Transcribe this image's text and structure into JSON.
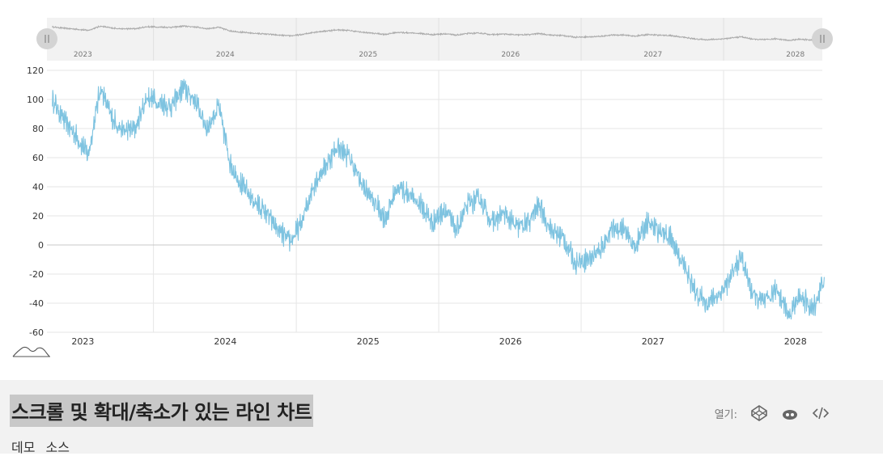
{
  "footer": {
    "title": "스크롤 및 확대/축소가 있는 라인 차트",
    "links": [
      "데모",
      "소스"
    ],
    "open_label": "열기:",
    "icons": [
      "codepen-icon",
      "glitch-icon",
      "code-icon"
    ]
  },
  "colors": {
    "series": "#7ec3e0",
    "navigator_series": "#aaaaaa",
    "grid": "#e6e6e6",
    "zero_line": "#c8c8c8",
    "footer_bg": "#f2f2f2",
    "title_highlight": "#c8c8c8"
  },
  "chart_data": {
    "type": "line",
    "title": "",
    "xlabel": "",
    "ylabel": "",
    "x_ticks": [
      "2023",
      "2024",
      "2025",
      "2026",
      "2027",
      "2028"
    ],
    "y_ticks": [
      120,
      100,
      80,
      60,
      40,
      20,
      0,
      -20,
      -40,
      -60
    ],
    "ylim": [
      -60,
      120
    ],
    "xlim": [
      "2022-10-01",
      "2028-03-10"
    ],
    "grid": true,
    "scrollbar": true,
    "navigator_labels": [
      "2023",
      "2024",
      "2025",
      "2026",
      "2027",
      "2028"
    ],
    "series": [
      {
        "x": [
          "2022-10",
          "2022-11",
          "2022-12",
          "2023-01",
          "2023-02",
          "2023-03",
          "2023-04",
          "2023-05",
          "2023-06",
          "2023-07",
          "2023-08",
          "2023-09",
          "2023-10",
          "2023-11",
          "2023-12",
          "2024-01",
          "2024-02",
          "2024-03",
          "2024-04",
          "2024-05",
          "2024-06",
          "2024-07",
          "2024-08",
          "2024-09",
          "2024-10",
          "2024-11",
          "2024-12",
          "2025-01",
          "2025-02",
          "2025-03",
          "2025-04",
          "2025-05",
          "2025-06",
          "2025-07",
          "2025-08",
          "2025-09",
          "2025-10",
          "2025-11",
          "2025-12",
          "2026-01",
          "2026-02",
          "2026-03",
          "2026-04",
          "2026-05",
          "2026-06",
          "2026-07",
          "2026-08",
          "2026-09",
          "2026-10",
          "2026-11",
          "2026-12",
          "2027-01",
          "2027-02",
          "2027-03",
          "2027-04",
          "2027-05",
          "2027-06",
          "2027-07",
          "2027-08",
          "2027-09",
          "2027-10",
          "2027-11",
          "2027-12",
          "2028-01",
          "2028-02",
          "2028-03"
        ],
        "values": [
          100,
          85,
          75,
          62,
          108,
          88,
          78,
          80,
          102,
          98,
          95,
          108,
          100,
          80,
          95,
          55,
          40,
          30,
          22,
          10,
          2,
          15,
          42,
          55,
          68,
          60,
          42,
          30,
          18,
          40,
          35,
          28,
          15,
          25,
          10,
          28,
          32,
          15,
          22,
          12,
          15,
          28,
          10,
          5,
          -12,
          -10,
          -5,
          10,
          12,
          -2,
          15,
          10,
          5,
          -10,
          -30,
          -40,
          -35,
          -25,
          -8,
          -35,
          -40,
          -30,
          -48,
          -35,
          -45,
          -22
        ]
      }
    ]
  }
}
